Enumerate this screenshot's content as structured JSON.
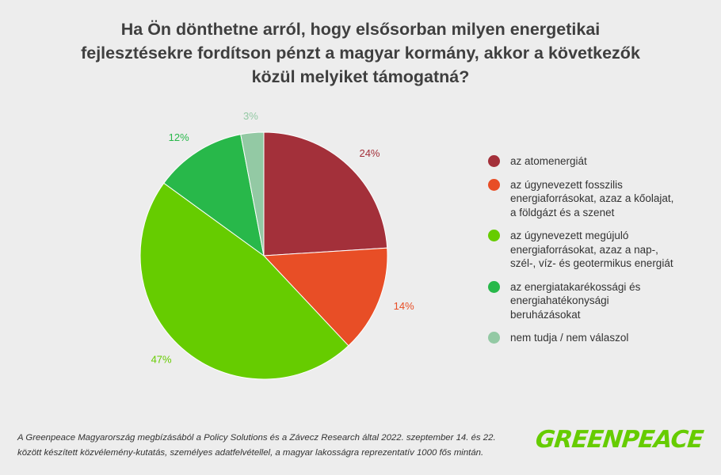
{
  "chart_data": {
    "type": "pie",
    "title": [
      "Ha Ön dönthetne arról, hogy elsősorban milyen energetikai",
      "fejlesztésekre fordítson pénzt a magyar kormány, akkor a következők",
      "közül melyiket támogatná?"
    ],
    "slices": [
      {
        "label": "az atomenergiát",
        "value": 24,
        "value_label": "24%",
        "color": "#a3303a"
      },
      {
        "label": "az úgynevezett fosszilis energiaforrásokat, azaz a kőolajat, a földgázt és a szenet",
        "value": 14,
        "value_label": "14%",
        "color": "#e84e26"
      },
      {
        "label": "az úgynevezett megújuló energiaforrásokat, azaz a nap-, szél-, víz- és geotermikus energiát",
        "value": 47,
        "value_label": "47%",
        "color": "#66cc00"
      },
      {
        "label": "az energiatakarékossági és energiahatékonysági beruházásokat",
        "value": 12,
        "value_label": "12%",
        "color": "#28b84a"
      },
      {
        "label": "nem tudja / nem válaszol",
        "value": 3,
        "value_label": "3%",
        "color": "#93c9a4"
      }
    ],
    "legend_position": "right"
  },
  "footnote": [
    "A Greenpeace Magyarország megbízásából a Policy Solutions és a Závecz Research által 2022. szeptember 14. és 22.",
    "között készített közvélemény-kutatás, személyes adatfelvétellel, a magyar lakosságra reprezentatív 1000 fős mintán."
  ],
  "logo": {
    "text": "GREENPEACE",
    "color": "#66cc00"
  }
}
